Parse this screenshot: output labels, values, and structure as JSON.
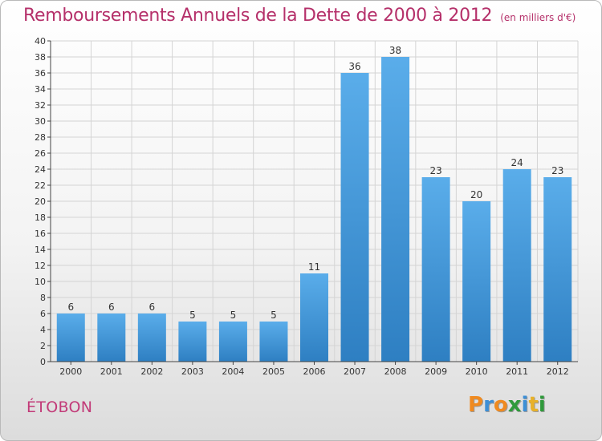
{
  "header": {
    "title": "Remboursements Annuels de la Dette de 2000 à 2012",
    "unit": "(en milliers d'€)"
  },
  "commune": "ÉTOBON",
  "brand": {
    "name": "Proxiti",
    "letters": [
      "P",
      "r",
      "o",
      "x",
      "i",
      "t",
      "i"
    ],
    "colors": [
      "#f08a1f",
      "#3d8fd6",
      "#f08a1f",
      "#2f9a3b",
      "#3d8fd6",
      "#e8b12a",
      "#2f9a3b"
    ]
  },
  "colors": {
    "title": "#b5306a",
    "bar_light": "#5aadea",
    "bar_dark": "#2e7fc2",
    "axis": "#444444",
    "grid": "#d4d4d4"
  },
  "chart_data": {
    "type": "bar",
    "categories": [
      "2000",
      "2001",
      "2002",
      "2003",
      "2004",
      "2005",
      "2006",
      "2007",
      "2008",
      "2009",
      "2010",
      "2011",
      "2012"
    ],
    "values": [
      6,
      6,
      6,
      5,
      5,
      5,
      11,
      36,
      38,
      23,
      20,
      24,
      23
    ],
    "title": "Remboursements Annuels de la Dette de 2000 à 2012",
    "unit": "(en milliers d'€)",
    "xlabel": "",
    "ylabel": "",
    "ylim": [
      0,
      40
    ],
    "yticks": [
      0,
      2,
      4,
      6,
      8,
      10,
      12,
      14,
      16,
      18,
      20,
      22,
      24,
      26,
      28,
      30,
      32,
      34,
      36,
      38,
      40
    ],
    "grid": true,
    "data_labels": true
  }
}
